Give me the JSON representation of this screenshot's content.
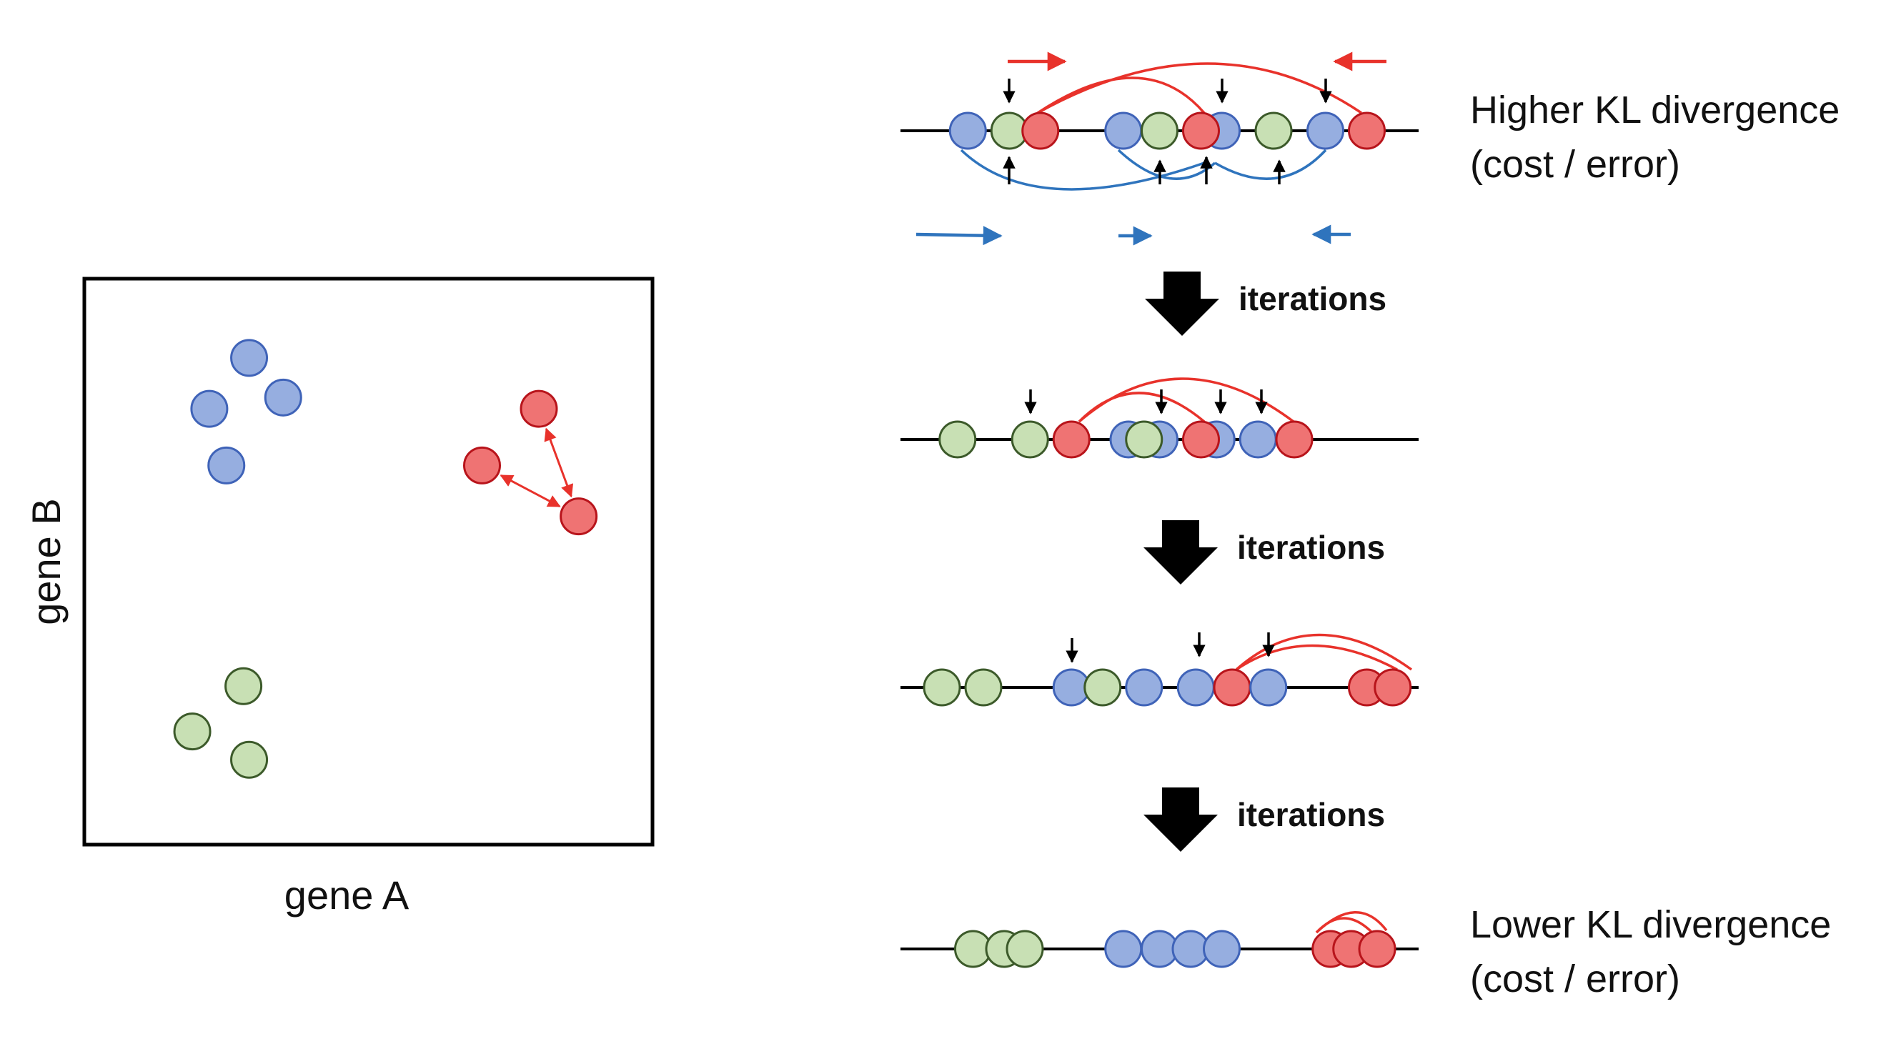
{
  "colors": {
    "blue_fill": "#96aee0",
    "blue_stroke": "#3f63b8",
    "red_fill": "#ef7373",
    "red_stroke": "#b8141b",
    "green_fill": "#c8e0b4",
    "green_stroke": "#3c5a2a",
    "red_arrow": "#e8322b",
    "blue_arrow": "#2f74bd",
    "black": "#000000"
  },
  "scatter": {
    "xlabel": "gene A",
    "ylabel": "gene B",
    "points": [
      {
        "group": "blue",
        "x": 0.29,
        "y": 0.86
      },
      {
        "group": "blue",
        "x": 0.22,
        "y": 0.77
      },
      {
        "group": "blue",
        "x": 0.35,
        "y": 0.79
      },
      {
        "group": "blue",
        "x": 0.25,
        "y": 0.67
      },
      {
        "group": "red",
        "x": 0.8,
        "y": 0.77
      },
      {
        "group": "red",
        "x": 0.7,
        "y": 0.67
      },
      {
        "group": "red",
        "x": 0.87,
        "y": 0.58
      },
      {
        "group": "green",
        "x": 0.28,
        "y": 0.28
      },
      {
        "group": "green",
        "x": 0.19,
        "y": 0.2
      },
      {
        "group": "green",
        "x": 0.29,
        "y": 0.15
      }
    ],
    "attraction_arrows": [
      {
        "from": 4,
        "to": 6
      },
      {
        "from": 5,
        "to": 6
      }
    ]
  },
  "stages": [
    {
      "label_line1": "Higher KL divergence",
      "label_line2": "(cost / error)",
      "points": [
        {
          "group": "blue",
          "x": 0.13
        },
        {
          "group": "green",
          "x": 0.21
        },
        {
          "group": "red",
          "x": 0.27
        },
        {
          "group": "blue",
          "x": 0.43
        },
        {
          "group": "green",
          "x": 0.5
        },
        {
          "group": "blue",
          "x": 0.62
        },
        {
          "group": "red",
          "x": 0.58
        },
        {
          "group": "green",
          "x": 0.72
        },
        {
          "group": "blue",
          "x": 0.82
        },
        {
          "group": "red",
          "x": 0.9
        }
      ]
    },
    {
      "points": [
        {
          "group": "green",
          "x": 0.11
        },
        {
          "group": "green",
          "x": 0.25
        },
        {
          "group": "red",
          "x": 0.33
        },
        {
          "group": "blue",
          "x": 0.44
        },
        {
          "group": "blue",
          "x": 0.5
        },
        {
          "group": "green",
          "x": 0.47
        },
        {
          "group": "blue",
          "x": 0.61
        },
        {
          "group": "red",
          "x": 0.58
        },
        {
          "group": "blue",
          "x": 0.69
        },
        {
          "group": "red",
          "x": 0.76
        }
      ]
    },
    {
      "points": [
        {
          "group": "green",
          "x": 0.08
        },
        {
          "group": "green",
          "x": 0.16
        },
        {
          "group": "blue",
          "x": 0.33
        },
        {
          "group": "green",
          "x": 0.39
        },
        {
          "group": "blue",
          "x": 0.47
        },
        {
          "group": "blue",
          "x": 0.57
        },
        {
          "group": "red",
          "x": 0.64
        },
        {
          "group": "blue",
          "x": 0.71
        },
        {
          "group": "red",
          "x": 0.9
        },
        {
          "group": "red",
          "x": 0.95
        }
      ]
    },
    {
      "label_line1": "Lower KL divergence",
      "label_line2": "(cost / error)",
      "points": [
        {
          "group": "green",
          "x": 0.14
        },
        {
          "group": "green",
          "x": 0.2
        },
        {
          "group": "green",
          "x": 0.24
        },
        {
          "group": "blue",
          "x": 0.43
        },
        {
          "group": "blue",
          "x": 0.5
        },
        {
          "group": "blue",
          "x": 0.56
        },
        {
          "group": "blue",
          "x": 0.62
        },
        {
          "group": "red",
          "x": 0.83
        },
        {
          "group": "red",
          "x": 0.87
        },
        {
          "group": "red",
          "x": 0.92
        }
      ]
    }
  ],
  "iterations": [
    {
      "label": "iterations"
    },
    {
      "label": "iterations"
    },
    {
      "label": "iterations"
    }
  ]
}
